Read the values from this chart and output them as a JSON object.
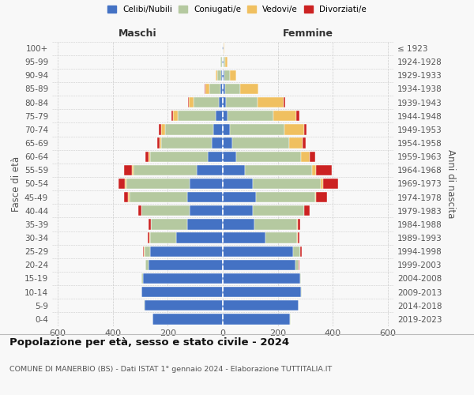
{
  "age_groups": [
    "0-4",
    "5-9",
    "10-14",
    "15-19",
    "20-24",
    "25-29",
    "30-34",
    "35-39",
    "40-44",
    "45-49",
    "50-54",
    "55-59",
    "60-64",
    "65-69",
    "70-74",
    "75-79",
    "80-84",
    "85-89",
    "90-94",
    "95-99",
    "100+"
  ],
  "birth_years": [
    "2019-2023",
    "2014-2018",
    "2009-2013",
    "2004-2008",
    "1999-2003",
    "1994-1998",
    "1989-1993",
    "1984-1988",
    "1979-1983",
    "1974-1978",
    "1969-1973",
    "1964-1968",
    "1959-1963",
    "1954-1958",
    "1949-1953",
    "1944-1948",
    "1939-1943",
    "1934-1938",
    "1929-1933",
    "1924-1928",
    "≤ 1923"
  ],
  "maschi": {
    "celibi": [
      255,
      285,
      295,
      290,
      270,
      265,
      170,
      130,
      120,
      130,
      120,
      95,
      55,
      40,
      35,
      25,
      15,
      8,
      5,
      3,
      2
    ],
    "coniugati": [
      1,
      1,
      2,
      5,
      10,
      20,
      95,
      130,
      175,
      210,
      230,
      230,
      210,
      185,
      175,
      140,
      90,
      40,
      15,
      5,
      2
    ],
    "vedovi": [
      0,
      0,
      0,
      0,
      0,
      2,
      2,
      2,
      2,
      5,
      5,
      5,
      5,
      5,
      15,
      15,
      18,
      15,
      5,
      2,
      0
    ],
    "divorziati": [
      0,
      0,
      0,
      0,
      2,
      2,
      5,
      8,
      10,
      15,
      25,
      30,
      10,
      8,
      8,
      8,
      2,
      2,
      0,
      0,
      0
    ]
  },
  "femmine": {
    "nubili": [
      245,
      275,
      285,
      280,
      265,
      255,
      155,
      115,
      110,
      120,
      110,
      80,
      50,
      35,
      25,
      18,
      12,
      8,
      5,
      3,
      2
    ],
    "coniugate": [
      1,
      1,
      2,
      5,
      10,
      25,
      115,
      155,
      185,
      215,
      245,
      245,
      235,
      205,
      200,
      165,
      115,
      55,
      20,
      5,
      2
    ],
    "vedove": [
      0,
      0,
      0,
      0,
      1,
      2,
      2,
      2,
      2,
      5,
      10,
      15,
      30,
      50,
      70,
      85,
      95,
      65,
      25,
      8,
      2
    ],
    "divorziate": [
      0,
      0,
      0,
      0,
      2,
      5,
      5,
      10,
      20,
      40,
      55,
      55,
      20,
      10,
      10,
      10,
      5,
      2,
      0,
      0,
      0
    ]
  },
  "colors": {
    "celibi": "#4472C4",
    "coniugati": "#b5c9a0",
    "vedovi": "#f0c060",
    "divorziati": "#cc2222"
  },
  "xlim": 620,
  "title": "Popolazione per età, sesso e stato civile - 2024",
  "subtitle": "COMUNE DI MANERBIO (BS) - Dati ISTAT 1° gennaio 2024 - Elaborazione TUTTITALIA.IT",
  "ylabel_left": "Fasce di età",
  "ylabel_right": "Anni di nascita",
  "xlabel_left": "Maschi",
  "xlabel_right": "Femmine",
  "bg_color": "#f8f8f8",
  "grid_color": "#cccccc"
}
